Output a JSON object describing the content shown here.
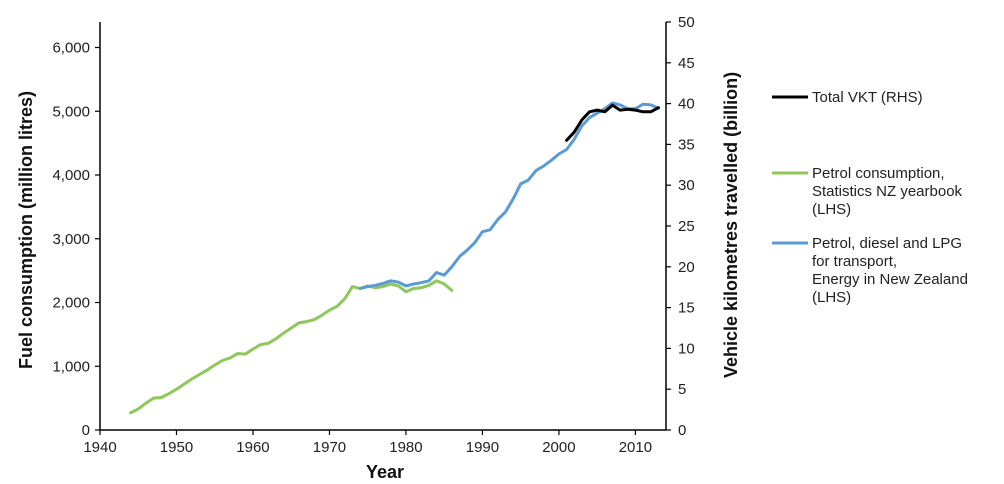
{
  "chart_data": {
    "type": "line",
    "xlabel": "Year",
    "ylabel_left": "Fuel consumption (million litres)",
    "ylabel_right": "Vehicle kilometres travelled (billion)",
    "xlim": [
      1940,
      2014
    ],
    "ylim_left": [
      0,
      6400
    ],
    "ylim_right": [
      0,
      50
    ],
    "x_ticks": [
      1940,
      1950,
      1960,
      1970,
      1980,
      1990,
      2000,
      2010
    ],
    "y_left_ticks": [
      {
        "value": 0,
        "label": "0"
      },
      {
        "value": 1000,
        "label": "1,000"
      },
      {
        "value": 2000,
        "label": "2,000"
      },
      {
        "value": 3000,
        "label": "3,000"
      },
      {
        "value": 4000,
        "label": "4,000"
      },
      {
        "value": 5000,
        "label": "5,000"
      },
      {
        "value": 6000,
        "label": "6,000"
      }
    ],
    "y_right_ticks": [
      0,
      5,
      10,
      15,
      20,
      25,
      30,
      35,
      40,
      45,
      50
    ],
    "grid": false,
    "legend_position": "right",
    "series": [
      {
        "name": "Total VKT (RHS)",
        "axis": "right",
        "color": "#000000",
        "points": [
          [
            2001,
            35.5
          ],
          [
            2002,
            36.5
          ],
          [
            2003,
            38.0
          ],
          [
            2004,
            39.0
          ],
          [
            2005,
            39.2
          ],
          [
            2006,
            39.0
          ],
          [
            2007,
            39.8
          ],
          [
            2008,
            39.2
          ],
          [
            2009,
            39.3
          ],
          [
            2010,
            39.2
          ],
          [
            2011,
            39.0
          ],
          [
            2012,
            39.0
          ],
          [
            2013,
            39.5
          ]
        ]
      },
      {
        "name": "Petrol consumption, Statistics NZ yearbook (LHS)",
        "legend_lines": [
          "Petrol consumption,",
          "Statistics NZ yearbook",
          "(LHS)"
        ],
        "axis": "left",
        "color": "#8dc85a",
        "points": [
          [
            1944,
            270
          ],
          [
            1945,
            330
          ],
          [
            1946,
            420
          ],
          [
            1947,
            500
          ],
          [
            1948,
            510
          ],
          [
            1949,
            570
          ],
          [
            1950,
            640
          ],
          [
            1951,
            720
          ],
          [
            1952,
            800
          ],
          [
            1953,
            870
          ],
          [
            1954,
            940
          ],
          [
            1955,
            1020
          ],
          [
            1956,
            1090
          ],
          [
            1957,
            1130
          ],
          [
            1958,
            1200
          ],
          [
            1959,
            1190
          ],
          [
            1960,
            1270
          ],
          [
            1961,
            1340
          ],
          [
            1962,
            1360
          ],
          [
            1963,
            1430
          ],
          [
            1964,
            1520
          ],
          [
            1965,
            1600
          ],
          [
            1966,
            1680
          ],
          [
            1967,
            1700
          ],
          [
            1968,
            1730
          ],
          [
            1969,
            1800
          ],
          [
            1970,
            1880
          ],
          [
            1971,
            1940
          ],
          [
            1972,
            2060
          ],
          [
            1973,
            2250
          ],
          [
            1974,
            2220
          ],
          [
            1975,
            2260
          ],
          [
            1976,
            2230
          ],
          [
            1977,
            2250
          ],
          [
            1978,
            2290
          ],
          [
            1979,
            2260
          ],
          [
            1980,
            2170
          ],
          [
            1981,
            2220
          ],
          [
            1982,
            2230
          ],
          [
            1983,
            2270
          ],
          [
            1984,
            2340
          ],
          [
            1985,
            2290
          ],
          [
            1986,
            2190
          ]
        ]
      },
      {
        "name": "Petrol, diesel and LPG for transport, Energy in New Zealand (LHS)",
        "legend_lines": [
          "Petrol, diesel and LPG",
          "for transport,",
          "Energy in New Zealand",
          "(LHS)"
        ],
        "axis": "left",
        "color": "#5b9bd5",
        "points": [
          [
            1974,
            2220
          ],
          [
            1975,
            2250
          ],
          [
            1976,
            2270
          ],
          [
            1977,
            2300
          ],
          [
            1978,
            2340
          ],
          [
            1979,
            2320
          ],
          [
            1980,
            2260
          ],
          [
            1981,
            2290
          ],
          [
            1982,
            2310
          ],
          [
            1983,
            2340
          ],
          [
            1984,
            2470
          ],
          [
            1985,
            2430
          ],
          [
            1986,
            2560
          ],
          [
            1987,
            2720
          ],
          [
            1988,
            2820
          ],
          [
            1989,
            2940
          ],
          [
            1990,
            3110
          ],
          [
            1991,
            3140
          ],
          [
            1992,
            3300
          ],
          [
            1993,
            3420
          ],
          [
            1994,
            3620
          ],
          [
            1995,
            3860
          ],
          [
            1996,
            3920
          ],
          [
            1997,
            4070
          ],
          [
            1998,
            4140
          ],
          [
            1999,
            4230
          ],
          [
            2000,
            4330
          ],
          [
            2001,
            4400
          ],
          [
            2002,
            4560
          ],
          [
            2003,
            4770
          ],
          [
            2004,
            4900
          ],
          [
            2005,
            4970
          ],
          [
            2006,
            5040
          ],
          [
            2007,
            5130
          ],
          [
            2008,
            5100
          ],
          [
            2009,
            5040
          ],
          [
            2010,
            5040
          ],
          [
            2011,
            5110
          ],
          [
            2012,
            5100
          ],
          [
            2013,
            5050
          ]
        ]
      }
    ]
  }
}
